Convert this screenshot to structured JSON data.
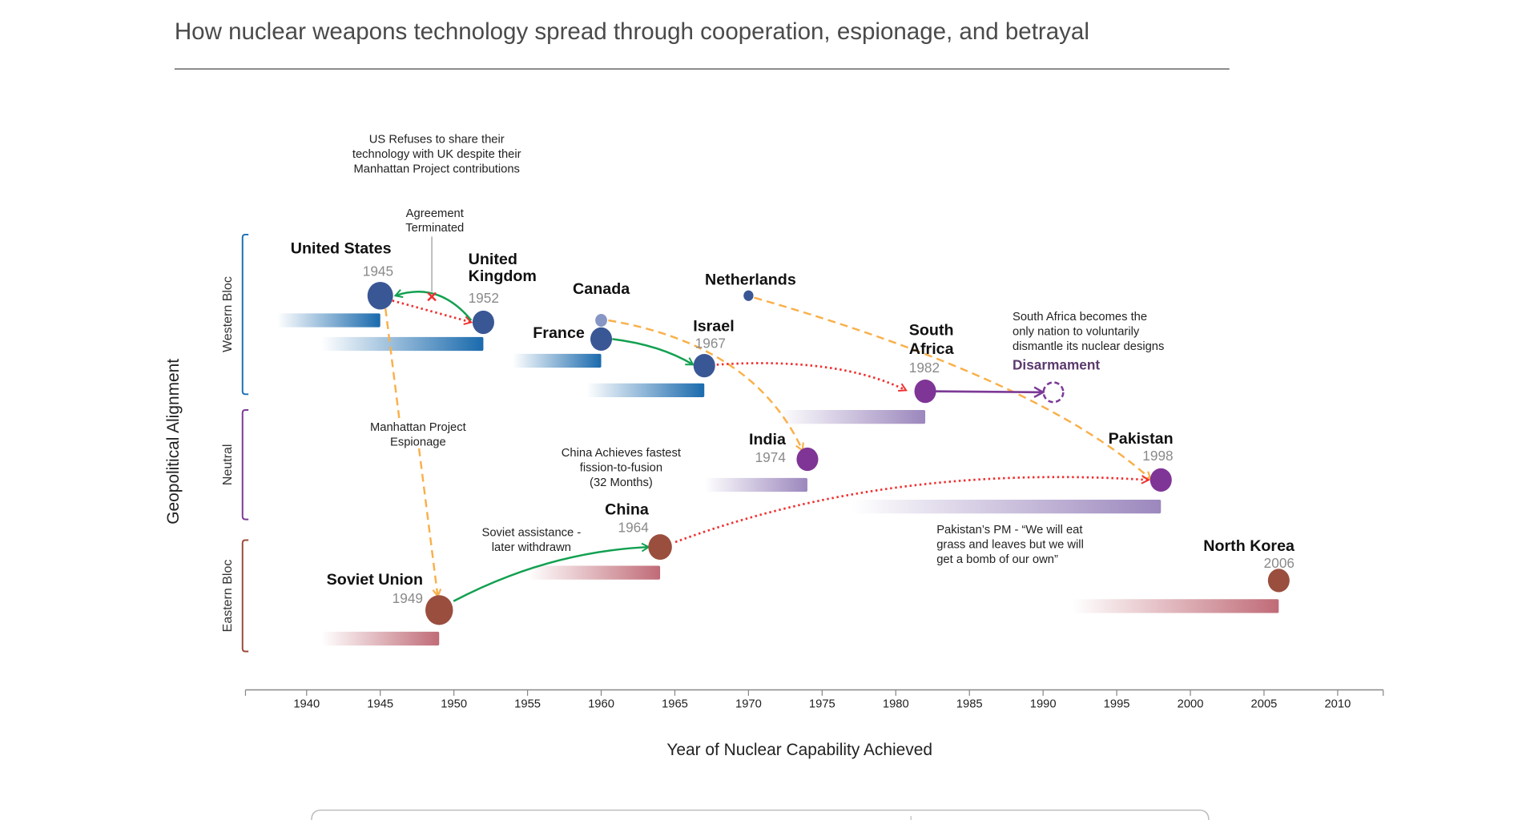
{
  "header": {
    "subtitle": "How nuclear weapons technology spread through cooperation, espionage, and betrayal"
  },
  "chart_data": {
    "type": "timeline",
    "xlabel": "Year of Nuclear Capability Achieved",
    "ylabel": "Geopolitical Alignment",
    "xlim": [
      1936,
      2013
    ],
    "xticks": [
      1940,
      1945,
      1950,
      1955,
      1960,
      1965,
      1970,
      1975,
      1980,
      1985,
      1990,
      1995,
      2000,
      2005,
      2010
    ],
    "blocs": [
      {
        "id": "western",
        "label": "Western Bloc",
        "color": "#1a6fb5"
      },
      {
        "id": "neutral",
        "label": "Neutral",
        "color": "#7b3a96"
      },
      {
        "id": "eastern",
        "label": "Eastern Bloc",
        "color": "#9b4a3a"
      }
    ],
    "countries": [
      {
        "name": "United States",
        "year": 1945,
        "year_label": "1945",
        "bloc": "western",
        "program_start": 1938
      },
      {
        "name": "United Kingdom",
        "year": 1952,
        "year_label": "1952",
        "bloc": "western",
        "program_start": 1941
      },
      {
        "name": "Canada",
        "year": 1960,
        "year_label": "",
        "bloc": "western"
      },
      {
        "name": "France",
        "year": 1960,
        "year_label": "",
        "bloc": "western",
        "program_start": 1954
      },
      {
        "name": "Netherlands",
        "year": 1970,
        "year_label": "",
        "bloc": "western"
      },
      {
        "name": "Israel",
        "year": 1967,
        "year_label": "1967",
        "bloc": "western",
        "program_start": 1959
      },
      {
        "name": "South Africa",
        "year": 1982,
        "year_label": "1982",
        "bloc": "neutral",
        "program_start": 1972
      },
      {
        "name": "India",
        "year": 1974,
        "year_label": "1974",
        "bloc": "neutral",
        "program_start": 1967
      },
      {
        "name": "Pakistan",
        "year": 1998,
        "year_label": "1998",
        "bloc": "neutral",
        "program_start": 1977
      },
      {
        "name": "China",
        "year": 1964,
        "year_label": "1964",
        "bloc": "eastern",
        "program_start": 1955
      },
      {
        "name": "Soviet Union",
        "year": 1949,
        "year_label": "1949",
        "bloc": "eastern",
        "program_start": 1941
      },
      {
        "name": "North Korea",
        "year": 2006,
        "year_label": "2006",
        "bloc": "eastern",
        "program_start": 1992
      }
    ],
    "connections": [
      {
        "from": "United Kingdom",
        "to": "United States",
        "type": "cooperation",
        "color": "#12a050",
        "terminated": true
      },
      {
        "from": "United States",
        "to": "United Kingdom",
        "type": "betrayal",
        "color": "#f03030"
      },
      {
        "from": "United States",
        "to": "Soviet Union",
        "type": "espionage",
        "color": "#f9b04a"
      },
      {
        "from": "France",
        "to": "Israel",
        "type": "cooperation",
        "color": "#12a050"
      },
      {
        "from": "Canada",
        "to": "India",
        "type": "espionage",
        "color": "#f9b04a"
      },
      {
        "from": "Israel",
        "to": "South Africa",
        "type": "betrayal",
        "color": "#f03030"
      },
      {
        "from": "Netherlands",
        "to": "Pakistan",
        "type": "espionage",
        "color": "#f9b04a"
      },
      {
        "from": "Soviet Union",
        "to": "China",
        "type": "cooperation",
        "color": "#12a050"
      },
      {
        "from": "China",
        "to": "Pakistan",
        "type": "betrayal",
        "color": "#f03030"
      },
      {
        "from": "South Africa",
        "to": "Disarmament",
        "type": "disarmament",
        "color": "#7b3a96"
      }
    ],
    "disarmament": {
      "label": "Disarmament",
      "year": 1991
    },
    "annotations": {
      "us_refuses": [
        "US Refuses to share their",
        "technology with UK despite their",
        "Manhattan Project contributions"
      ],
      "agreement": [
        "Agreement",
        "Terminated"
      ],
      "espionage": [
        "Manhattan Project",
        "Espionage"
      ],
      "china_fusion": [
        "China Achieves fastest",
        "fission-to-fusion",
        "(32 Months)"
      ],
      "soviet_assist": [
        "Soviet assistance -",
        "later withdrawn"
      ],
      "south_africa": [
        "South Africa becomes the",
        "only nation to voluntarily",
        "dismantle its nuclear designs"
      ],
      "pakistan_pm": [
        "Pakistan’s PM - “We will eat",
        "grass and leaves but we will",
        "get a bomb of our own”"
      ]
    },
    "colors": {
      "western_dot": "#3a5795",
      "neutral_dot": "#7f3596",
      "eastern_dot": "#9a4e3e",
      "western_bar": "#1a6aad",
      "neutral_bar": "#9b87bd",
      "eastern_bar": "#c06b77"
    }
  }
}
